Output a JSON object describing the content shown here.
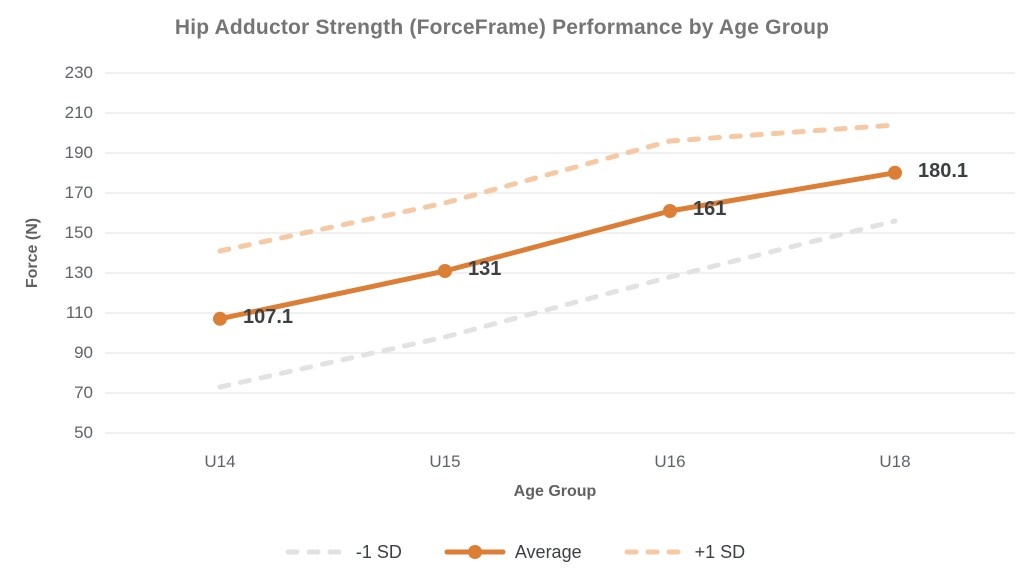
{
  "title": "Hip Adductor Strength (ForceFrame) Performance by Age Group",
  "chart_data": {
    "type": "line",
    "title": "Hip Adductor Strength (ForceFrame) Performance by Age Group",
    "xlabel": "Age Group",
    "ylabel": "Force (N)",
    "categories": [
      "U14",
      "U15",
      "U16",
      "U18"
    ],
    "y_ticks": [
      230,
      210,
      190,
      170,
      150,
      130,
      110,
      90,
      70,
      50
    ],
    "ylim": [
      50,
      230
    ],
    "grid": true,
    "legend_position": "bottom",
    "series": [
      {
        "name": "-1 SD",
        "values": [
          73,
          98,
          128,
          156
        ],
        "line_style": "dashed",
        "color": "#e2e2e2",
        "markers": false
      },
      {
        "name": "Average",
        "values": [
          107.1,
          131,
          161,
          180.1
        ],
        "data_labels": [
          "107.1",
          "131",
          "161",
          "180.1"
        ],
        "line_style": "solid",
        "color": "#dc7e35",
        "markers": true
      },
      {
        "name": "+1 SD",
        "values": [
          141,
          165,
          196,
          204
        ],
        "line_style": "dashed",
        "color": "#f5c9a4",
        "markers": false
      }
    ],
    "colors": {
      "average_line": "#dc7e35",
      "plus_sd_line": "#f5c9a4",
      "minus_sd_line": "#e2e2e2",
      "gridline": "#e8e8e8",
      "title_text": "#757575",
      "axis_text": "#5f6368",
      "data_label_text": "#3c4043"
    }
  }
}
